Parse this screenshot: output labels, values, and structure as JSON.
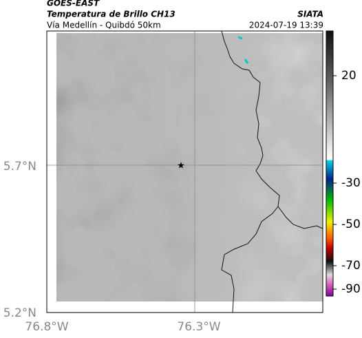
{
  "header": {
    "source": "GOES-EAST",
    "title": "Temperatura de Brillo CH13",
    "subtitle": "Vía Medellín - Quibdó 50km",
    "agency": "SIATA",
    "datetime": "2024-07-19 13:39"
  },
  "map": {
    "lat_labels": [
      "5.7°N",
      "5.2°N"
    ],
    "lon_labels": [
      "76.8°W",
      "76.3°W"
    ]
  },
  "colorbar": {
    "tick_labels": [
      20,
      -30,
      -50,
      -70,
      -90
    ]
  }
}
